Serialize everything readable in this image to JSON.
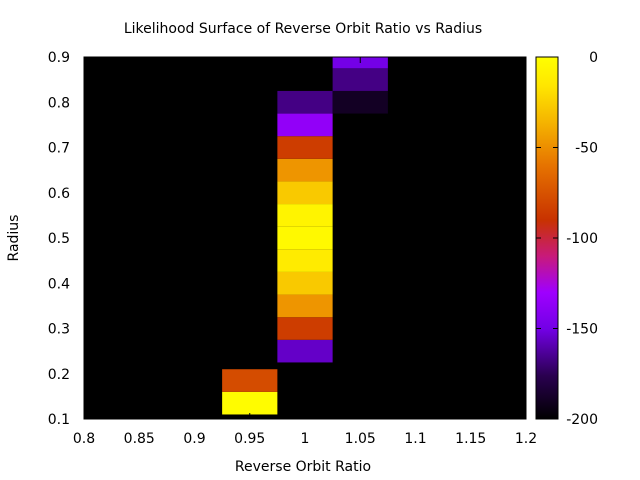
{
  "chart_data": {
    "type": "heatmap",
    "title": "Likelihood Surface of Reverse Orbit Ratio vs Radius",
    "xlabel": "Reverse Orbit Ratio",
    "ylabel": "Radius",
    "xlim": [
      0.8,
      1.2
    ],
    "ylim": [
      0.1,
      0.9
    ],
    "xticks": [
      "0.8",
      "0.85",
      "0.9",
      "0.95",
      "1",
      "1.05",
      "1.1",
      "1.15",
      "1.2"
    ],
    "yticks": [
      "0.1",
      "0.2",
      "0.3",
      "0.4",
      "0.5",
      "0.6",
      "0.7",
      "0.8",
      "0.9"
    ],
    "background_value": -200,
    "colorbar": {
      "range": [
        -200,
        0
      ],
      "ticks": [
        "0",
        "-50",
        "-100",
        "-150",
        "-200"
      ],
      "palette": [
        "#000000",
        "#2a0050",
        "#7300e6",
        "#9f00ff",
        "#c81a7a",
        "#c83200",
        "#e67300",
        "#f5b400",
        "#ffe600",
        "#ffff00"
      ]
    },
    "cells": [
      {
        "x": 0.95,
        "y": 0.135,
        "value": -3
      },
      {
        "x": 0.95,
        "y": 0.185,
        "value": -80
      },
      {
        "x": 1.0,
        "y": 0.25,
        "value": -160
      },
      {
        "x": 1.0,
        "y": 0.3,
        "value": -85
      },
      {
        "x": 1.0,
        "y": 0.35,
        "value": -55
      },
      {
        "x": 1.0,
        "y": 0.4,
        "value": -35
      },
      {
        "x": 1.0,
        "y": 0.45,
        "value": -18
      },
      {
        "x": 1.0,
        "y": 0.5,
        "value": -5
      },
      {
        "x": 1.0,
        "y": 0.55,
        "value": -10
      },
      {
        "x": 1.0,
        "y": 0.6,
        "value": -35
      },
      {
        "x": 1.0,
        "y": 0.65,
        "value": -55
      },
      {
        "x": 1.0,
        "y": 0.7,
        "value": -85
      },
      {
        "x": 1.0,
        "y": 0.75,
        "value": -140
      },
      {
        "x": 1.0,
        "y": 0.8,
        "value": -170
      },
      {
        "x": 1.05,
        "y": 0.8,
        "value": -190
      },
      {
        "x": 1.05,
        "y": 0.85,
        "value": -170
      },
      {
        "x": 1.05,
        "y": 0.9,
        "value": -155
      }
    ]
  }
}
